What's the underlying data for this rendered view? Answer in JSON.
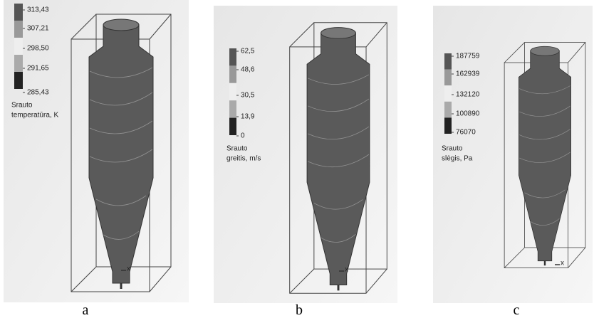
{
  "panels": [
    {
      "label": "a",
      "axis_label": "x",
      "legend": {
        "title": [
          "Srauto",
          "temperatūra, K"
        ],
        "ticks": [
          "313,43",
          "307,21",
          "298,50",
          "291,65",
          "285,43"
        ]
      }
    },
    {
      "label": "b",
      "axis_label": "x",
      "legend": {
        "title": [
          "Srauto",
          "greitis, m/s"
        ],
        "ticks": [
          "62,5",
          "48,6",
          "30,5",
          "13,9",
          "0"
        ]
      }
    },
    {
      "label": "c",
      "axis_label": "x",
      "legend": {
        "title": [
          "Srauto",
          "slėgis, Pa"
        ],
        "ticks": [
          "187759",
          "162939",
          "132120",
          "100890",
          "76070"
        ]
      }
    }
  ]
}
